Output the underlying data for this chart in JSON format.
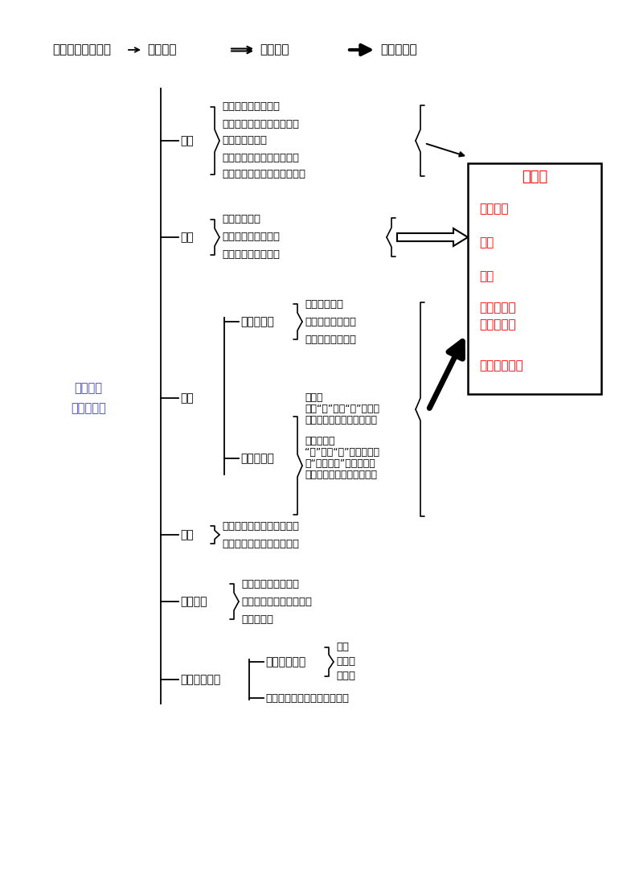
{
  "bg_color": "#ffffff",
  "main_label_color": "#4040cc",
  "box_title": "知识点",
  "box_color": "#ff0000",
  "box_items": [
    "计数单位",
    "数值",
    "数级",
    "相邻两个单位间的进率",
    "十进制计数法"
  ]
}
